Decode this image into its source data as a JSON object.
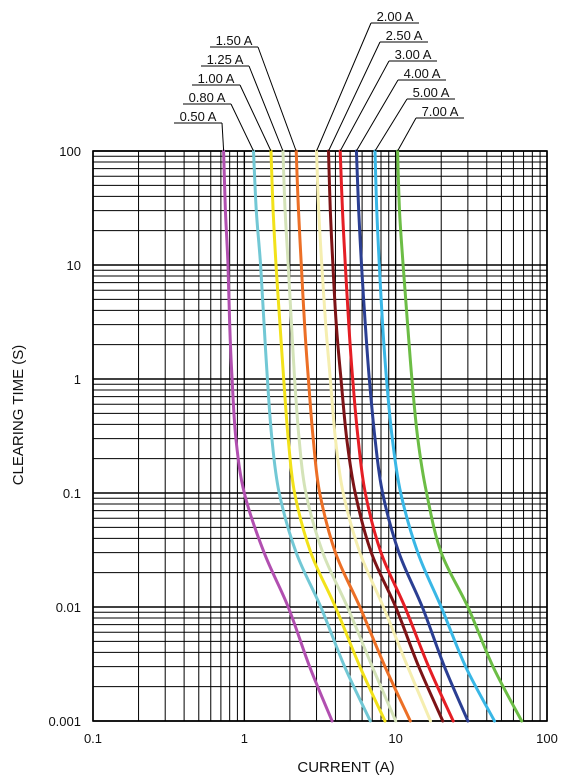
{
  "chart_data": {
    "type": "line",
    "xlabel": "CURRENT (A)",
    "ylabel": "CLEARING TIME (S)",
    "x_scale": "log",
    "y_scale": "log",
    "xlim": [
      0.1,
      100
    ],
    "ylim": [
      0.001,
      100
    ],
    "x_ticks": [
      "0.1",
      "1",
      "10",
      "100"
    ],
    "y_ticks": [
      "0.001",
      "0.01",
      "0.1",
      "1",
      "10",
      "100"
    ],
    "grid": true,
    "series": [
      {
        "name": "0.50 A",
        "color": "#b14fb0",
        "points": [
          [
            0.73,
            100
          ],
          [
            0.75,
            30
          ],
          [
            0.78,
            10
          ],
          [
            0.8,
            3
          ],
          [
            0.83,
            1
          ],
          [
            0.88,
            0.3
          ],
          [
            1.0,
            0.1
          ],
          [
            1.35,
            0.03
          ],
          [
            1.95,
            0.01
          ],
          [
            2.7,
            0.003
          ],
          [
            3.8,
            0.001
          ]
        ]
      },
      {
        "name": "0.80 A",
        "color": "#72c8d5",
        "points": [
          [
            1.15,
            100
          ],
          [
            1.2,
            30
          ],
          [
            1.28,
            10
          ],
          [
            1.35,
            3
          ],
          [
            1.42,
            1
          ],
          [
            1.52,
            0.3
          ],
          [
            1.7,
            0.1
          ],
          [
            2.2,
            0.03
          ],
          [
            3.2,
            0.01
          ],
          [
            4.6,
            0.003
          ],
          [
            6.8,
            0.001
          ]
        ]
      },
      {
        "name": "1.00 A",
        "color": "#f2e21a",
        "points": [
          [
            1.5,
            100
          ],
          [
            1.55,
            30
          ],
          [
            1.62,
            10
          ],
          [
            1.72,
            3
          ],
          [
            1.82,
            1
          ],
          [
            1.95,
            0.3
          ],
          [
            2.15,
            0.1
          ],
          [
            2.75,
            0.03
          ],
          [
            4.0,
            0.01
          ],
          [
            5.8,
            0.003
          ],
          [
            8.5,
            0.001
          ]
        ]
      },
      {
        "name": "1.25 A",
        "color": "#d4e3b8",
        "points": [
          [
            1.8,
            100
          ],
          [
            1.86,
            30
          ],
          [
            1.95,
            10
          ],
          [
            2.05,
            3
          ],
          [
            2.15,
            1
          ],
          [
            2.3,
            0.3
          ],
          [
            2.55,
            0.1
          ],
          [
            3.3,
            0.03
          ],
          [
            4.8,
            0.01
          ],
          [
            7.0,
            0.003
          ],
          [
            10.0,
            0.001
          ]
        ]
      },
      {
        "name": "1.50 A",
        "color": "#ec6f26",
        "points": [
          [
            2.2,
            100
          ],
          [
            2.28,
            30
          ],
          [
            2.38,
            10
          ],
          [
            2.5,
            3
          ],
          [
            2.65,
            1
          ],
          [
            2.85,
            0.3
          ],
          [
            3.15,
            0.1
          ],
          [
            4.0,
            0.03
          ],
          [
            5.8,
            0.01
          ],
          [
            8.5,
            0.003
          ],
          [
            12.5,
            0.001
          ]
        ]
      },
      {
        "name": "2.00 A",
        "color": "#f5eeb0",
        "points": [
          [
            3.0,
            100
          ],
          [
            3.1,
            30
          ],
          [
            3.25,
            10
          ],
          [
            3.45,
            3
          ],
          [
            3.7,
            1
          ],
          [
            4.0,
            0.3
          ],
          [
            4.5,
            0.1
          ],
          [
            5.8,
            0.03
          ],
          [
            8.3,
            0.01
          ],
          [
            12.0,
            0.003
          ],
          [
            17.0,
            0.001
          ]
        ]
      },
      {
        "name": "2.50 A",
        "color": "#7d1316",
        "points": [
          [
            3.6,
            100
          ],
          [
            3.7,
            30
          ],
          [
            3.85,
            10
          ],
          [
            4.05,
            3
          ],
          [
            4.35,
            1
          ],
          [
            4.75,
            0.3
          ],
          [
            5.4,
            0.1
          ],
          [
            6.9,
            0.03
          ],
          [
            10.0,
            0.01
          ],
          [
            14.2,
            0.003
          ],
          [
            20.5,
            0.001
          ]
        ]
      },
      {
        "name": "3.00 A",
        "color": "#e51e25",
        "points": [
          [
            4.3,
            100
          ],
          [
            4.45,
            30
          ],
          [
            4.65,
            10
          ],
          [
            4.9,
            3
          ],
          [
            5.2,
            1
          ],
          [
            5.65,
            0.3
          ],
          [
            6.3,
            0.1
          ],
          [
            8.0,
            0.03
          ],
          [
            11.5,
            0.01
          ],
          [
            16.5,
            0.003
          ],
          [
            24.0,
            0.001
          ]
        ]
      },
      {
        "name": "4.00 A",
        "color": "#2b3f93",
        "points": [
          [
            5.5,
            100
          ],
          [
            5.7,
            30
          ],
          [
            5.95,
            10
          ],
          [
            6.3,
            3
          ],
          [
            6.7,
            1
          ],
          [
            7.3,
            0.3
          ],
          [
            8.2,
            0.1
          ],
          [
            10.5,
            0.03
          ],
          [
            15.0,
            0.01
          ],
          [
            21.0,
            0.003
          ],
          [
            30.0,
            0.001
          ]
        ]
      },
      {
        "name": "5.00 A",
        "color": "#39b7e6",
        "points": [
          [
            7.3,
            100
          ],
          [
            7.5,
            30
          ],
          [
            7.8,
            10
          ],
          [
            8.2,
            3
          ],
          [
            8.7,
            1
          ],
          [
            9.5,
            0.3
          ],
          [
            10.8,
            0.1
          ],
          [
            14.0,
            0.03
          ],
          [
            20.0,
            0.01
          ],
          [
            29.0,
            0.003
          ],
          [
            45.0,
            0.001
          ]
        ]
      },
      {
        "name": "7.00 A",
        "color": "#6cbd45",
        "points": [
          [
            10.3,
            100
          ],
          [
            10.6,
            30
          ],
          [
            11.2,
            10
          ],
          [
            12.0,
            3
          ],
          [
            12.8,
            1
          ],
          [
            14.0,
            0.3
          ],
          [
            16.0,
            0.1
          ],
          [
            20.0,
            0.03
          ],
          [
            30.0,
            0.01
          ],
          [
            44.0,
            0.003
          ],
          [
            68.0,
            0.001
          ]
        ]
      }
    ]
  }
}
